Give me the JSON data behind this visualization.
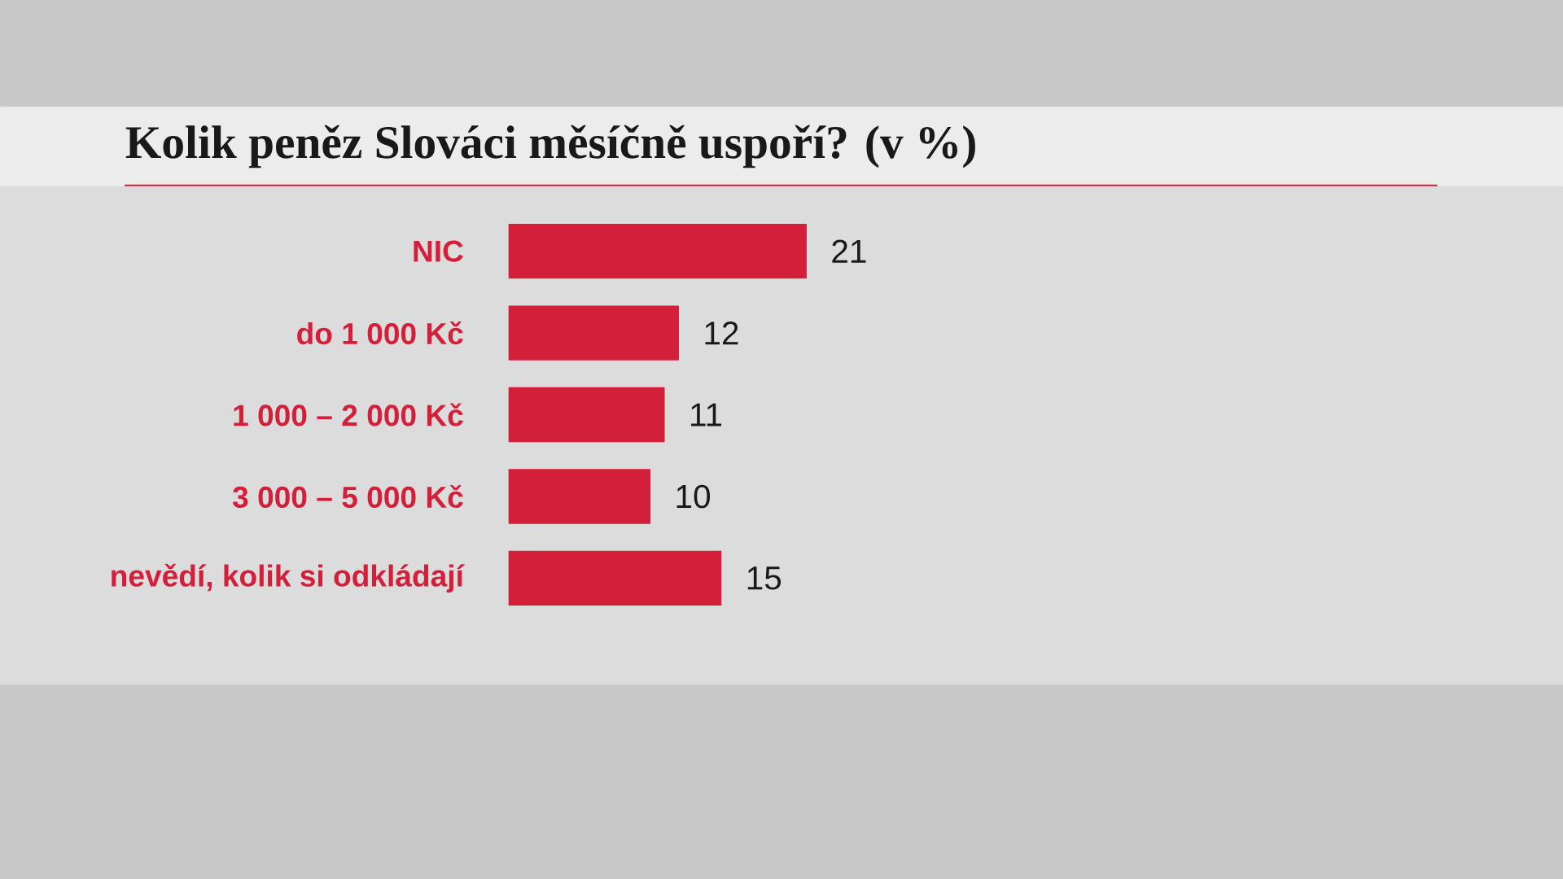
{
  "chart_data": {
    "type": "bar",
    "orientation": "horizontal",
    "title": "Kolik peněz Slováci měsíčně uspoří? (v %)",
    "categories": [
      "NIC",
      "do 1 000 Kč",
      "1 000 – 2 000 Kč",
      "3 000 – 5 000 Kč",
      "nevědí, kolik si odkládají"
    ],
    "values": [
      21,
      12,
      11,
      10,
      15
    ],
    "color": "#d41f3a",
    "data_labels": true
  }
}
